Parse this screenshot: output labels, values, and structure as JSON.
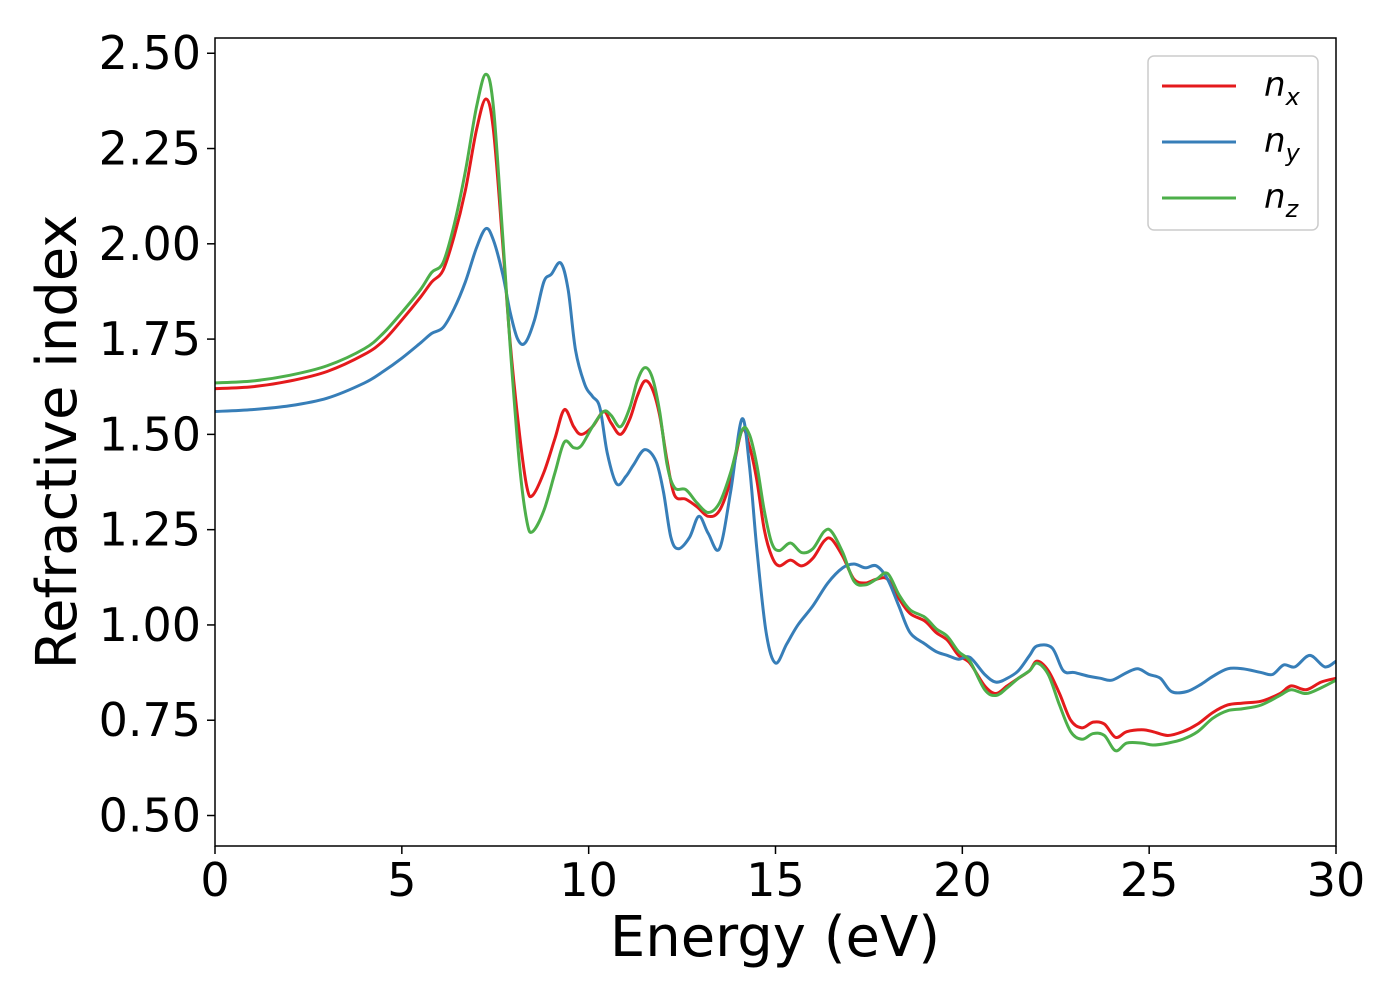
{
  "chart_data": {
    "type": "line",
    "title": "",
    "xlabel": "Energy (eV)",
    "ylabel": "Refractive index",
    "xlim": [
      0,
      30
    ],
    "ylim": [
      0.42,
      2.54
    ],
    "xticks": [
      "0",
      "5",
      "10",
      "15",
      "20",
      "25",
      "30"
    ],
    "yticks": [
      "0.50",
      "0.75",
      "1.00",
      "1.25",
      "1.50",
      "1.75",
      "2.00",
      "2.25",
      "2.50"
    ],
    "grid": false,
    "legend_position": "top-right",
    "series": [
      {
        "name": "n",
        "subscript": "x",
        "color": "#e41a1c",
        "points": [
          [
            0,
            1.62
          ],
          [
            1,
            1.625
          ],
          [
            2,
            1.64
          ],
          [
            3,
            1.665
          ],
          [
            4,
            1.71
          ],
          [
            4.5,
            1.745
          ],
          [
            5,
            1.8
          ],
          [
            5.5,
            1.86
          ],
          [
            5.8,
            1.9
          ],
          [
            6.1,
            1.93
          ],
          [
            6.4,
            2.02
          ],
          [
            6.7,
            2.14
          ],
          [
            7,
            2.3
          ],
          [
            7.25,
            2.38
          ],
          [
            7.45,
            2.3
          ],
          [
            7.7,
            2.0
          ],
          [
            7.9,
            1.74
          ],
          [
            8.15,
            1.5
          ],
          [
            8.35,
            1.36
          ],
          [
            8.5,
            1.34
          ],
          [
            8.8,
            1.4
          ],
          [
            9.1,
            1.49
          ],
          [
            9.35,
            1.565
          ],
          [
            9.6,
            1.52
          ],
          [
            9.8,
            1.5
          ],
          [
            10.1,
            1.52
          ],
          [
            10.4,
            1.56
          ],
          [
            10.6,
            1.53
          ],
          [
            10.85,
            1.5
          ],
          [
            11.1,
            1.54
          ],
          [
            11.3,
            1.6
          ],
          [
            11.5,
            1.64
          ],
          [
            11.7,
            1.62
          ],
          [
            11.9,
            1.55
          ],
          [
            12.1,
            1.43
          ],
          [
            12.3,
            1.34
          ],
          [
            12.6,
            1.33
          ],
          [
            12.9,
            1.31
          ],
          [
            13.2,
            1.285
          ],
          [
            13.5,
            1.3
          ],
          [
            13.8,
            1.38
          ],
          [
            14.1,
            1.51
          ],
          [
            14.3,
            1.47
          ],
          [
            14.5,
            1.38
          ],
          [
            14.7,
            1.25
          ],
          [
            14.9,
            1.18
          ],
          [
            15.1,
            1.155
          ],
          [
            15.4,
            1.17
          ],
          [
            15.7,
            1.155
          ],
          [
            16.0,
            1.175
          ],
          [
            16.3,
            1.22
          ],
          [
            16.5,
            1.225
          ],
          [
            16.8,
            1.18
          ],
          [
            17.1,
            1.12
          ],
          [
            17.4,
            1.11
          ],
          [
            17.7,
            1.12
          ],
          [
            18.0,
            1.12
          ],
          [
            18.3,
            1.07
          ],
          [
            18.6,
            1.03
          ],
          [
            19.0,
            1.01
          ],
          [
            19.3,
            0.98
          ],
          [
            19.6,
            0.96
          ],
          [
            19.9,
            0.92
          ],
          [
            20.2,
            0.9
          ],
          [
            20.6,
            0.84
          ],
          [
            20.9,
            0.82
          ],
          [
            21.2,
            0.84
          ],
          [
            21.5,
            0.86
          ],
          [
            21.8,
            0.88
          ],
          [
            22.0,
            0.905
          ],
          [
            22.3,
            0.88
          ],
          [
            22.6,
            0.82
          ],
          [
            22.9,
            0.75
          ],
          [
            23.2,
            0.73
          ],
          [
            23.5,
            0.745
          ],
          [
            23.8,
            0.74
          ],
          [
            24.1,
            0.705
          ],
          [
            24.4,
            0.72
          ],
          [
            24.8,
            0.725
          ],
          [
            25.1,
            0.72
          ],
          [
            25.5,
            0.71
          ],
          [
            25.9,
            0.72
          ],
          [
            26.3,
            0.74
          ],
          [
            26.7,
            0.77
          ],
          [
            27.1,
            0.79
          ],
          [
            27.5,
            0.795
          ],
          [
            28.0,
            0.8
          ],
          [
            28.5,
            0.82
          ],
          [
            28.8,
            0.84
          ],
          [
            29.2,
            0.83
          ],
          [
            29.6,
            0.85
          ],
          [
            30,
            0.86
          ]
        ]
      },
      {
        "name": "n",
        "subscript": "y",
        "color": "#377eb8",
        "points": [
          [
            0,
            1.56
          ],
          [
            1,
            1.565
          ],
          [
            2,
            1.575
          ],
          [
            3,
            1.595
          ],
          [
            4,
            1.635
          ],
          [
            4.5,
            1.665
          ],
          [
            5,
            1.7
          ],
          [
            5.5,
            1.74
          ],
          [
            5.8,
            1.765
          ],
          [
            6.1,
            1.78
          ],
          [
            6.4,
            1.83
          ],
          [
            6.7,
            1.9
          ],
          [
            7,
            1.99
          ],
          [
            7.25,
            2.04
          ],
          [
            7.45,
            2.01
          ],
          [
            7.7,
            1.92
          ],
          [
            7.9,
            1.82
          ],
          [
            8.1,
            1.75
          ],
          [
            8.3,
            1.74
          ],
          [
            8.55,
            1.8
          ],
          [
            8.8,
            1.9
          ],
          [
            9.0,
            1.92
          ],
          [
            9.25,
            1.95
          ],
          [
            9.45,
            1.88
          ],
          [
            9.65,
            1.72
          ],
          [
            9.9,
            1.63
          ],
          [
            10.1,
            1.6
          ],
          [
            10.3,
            1.57
          ],
          [
            10.5,
            1.45
          ],
          [
            10.75,
            1.37
          ],
          [
            11.0,
            1.39
          ],
          [
            11.2,
            1.42
          ],
          [
            11.5,
            1.46
          ],
          [
            11.8,
            1.43
          ],
          [
            12.0,
            1.35
          ],
          [
            12.2,
            1.23
          ],
          [
            12.4,
            1.2
          ],
          [
            12.7,
            1.23
          ],
          [
            12.95,
            1.285
          ],
          [
            13.2,
            1.24
          ],
          [
            13.5,
            1.2
          ],
          [
            13.8,
            1.35
          ],
          [
            14.1,
            1.54
          ],
          [
            14.3,
            1.42
          ],
          [
            14.5,
            1.2
          ],
          [
            14.75,
            0.98
          ],
          [
            15.0,
            0.9
          ],
          [
            15.3,
            0.95
          ],
          [
            15.6,
            1.0
          ],
          [
            16.0,
            1.05
          ],
          [
            16.4,
            1.11
          ],
          [
            16.8,
            1.15
          ],
          [
            17.1,
            1.16
          ],
          [
            17.4,
            1.15
          ],
          [
            17.7,
            1.155
          ],
          [
            18.0,
            1.12
          ],
          [
            18.3,
            1.05
          ],
          [
            18.6,
            0.98
          ],
          [
            19.0,
            0.95
          ],
          [
            19.3,
            0.93
          ],
          [
            19.6,
            0.92
          ],
          [
            19.9,
            0.91
          ],
          [
            20.2,
            0.915
          ],
          [
            20.6,
            0.87
          ],
          [
            20.9,
            0.85
          ],
          [
            21.2,
            0.86
          ],
          [
            21.5,
            0.88
          ],
          [
            21.8,
            0.92
          ],
          [
            22.0,
            0.945
          ],
          [
            22.4,
            0.94
          ],
          [
            22.7,
            0.88
          ],
          [
            23.0,
            0.875
          ],
          [
            23.4,
            0.865
          ],
          [
            23.7,
            0.86
          ],
          [
            24.0,
            0.855
          ],
          [
            24.4,
            0.875
          ],
          [
            24.7,
            0.885
          ],
          [
            25.0,
            0.87
          ],
          [
            25.3,
            0.86
          ],
          [
            25.6,
            0.825
          ],
          [
            26.0,
            0.825
          ],
          [
            26.4,
            0.845
          ],
          [
            26.7,
            0.865
          ],
          [
            27.1,
            0.885
          ],
          [
            27.5,
            0.885
          ],
          [
            28.0,
            0.875
          ],
          [
            28.3,
            0.87
          ],
          [
            28.6,
            0.895
          ],
          [
            28.9,
            0.89
          ],
          [
            29.3,
            0.92
          ],
          [
            29.7,
            0.89
          ],
          [
            30,
            0.905
          ]
        ]
      },
      {
        "name": "n",
        "subscript": "z",
        "color": "#4daf4a",
        "points": [
          [
            0,
            1.635
          ],
          [
            1,
            1.64
          ],
          [
            2,
            1.655
          ],
          [
            3,
            1.68
          ],
          [
            4,
            1.725
          ],
          [
            4.5,
            1.765
          ],
          [
            5,
            1.82
          ],
          [
            5.5,
            1.88
          ],
          [
            5.8,
            1.925
          ],
          [
            6.1,
            1.95
          ],
          [
            6.4,
            2.05
          ],
          [
            6.7,
            2.19
          ],
          [
            7,
            2.36
          ],
          [
            7.25,
            2.445
          ],
          [
            7.45,
            2.36
          ],
          [
            7.7,
            2.02
          ],
          [
            7.9,
            1.73
          ],
          [
            8.15,
            1.42
          ],
          [
            8.35,
            1.27
          ],
          [
            8.5,
            1.245
          ],
          [
            8.8,
            1.3
          ],
          [
            9.1,
            1.4
          ],
          [
            9.35,
            1.48
          ],
          [
            9.6,
            1.465
          ],
          [
            9.8,
            1.47
          ],
          [
            10.1,
            1.52
          ],
          [
            10.4,
            1.56
          ],
          [
            10.6,
            1.55
          ],
          [
            10.85,
            1.52
          ],
          [
            11.1,
            1.57
          ],
          [
            11.3,
            1.64
          ],
          [
            11.5,
            1.675
          ],
          [
            11.7,
            1.65
          ],
          [
            11.9,
            1.56
          ],
          [
            12.1,
            1.42
          ],
          [
            12.3,
            1.36
          ],
          [
            12.6,
            1.355
          ],
          [
            12.9,
            1.32
          ],
          [
            13.2,
            1.295
          ],
          [
            13.5,
            1.32
          ],
          [
            13.8,
            1.4
          ],
          [
            14.1,
            1.51
          ],
          [
            14.3,
            1.5
          ],
          [
            14.5,
            1.42
          ],
          [
            14.7,
            1.3
          ],
          [
            14.9,
            1.215
          ],
          [
            15.1,
            1.195
          ],
          [
            15.4,
            1.215
          ],
          [
            15.7,
            1.19
          ],
          [
            16.0,
            1.2
          ],
          [
            16.3,
            1.245
          ],
          [
            16.5,
            1.245
          ],
          [
            16.8,
            1.19
          ],
          [
            17.1,
            1.115
          ],
          [
            17.4,
            1.105
          ],
          [
            17.7,
            1.12
          ],
          [
            18.0,
            1.135
          ],
          [
            18.3,
            1.08
          ],
          [
            18.6,
            1.04
          ],
          [
            19.0,
            1.02
          ],
          [
            19.3,
            0.99
          ],
          [
            19.6,
            0.97
          ],
          [
            19.9,
            0.93
          ],
          [
            20.2,
            0.905
          ],
          [
            20.6,
            0.83
          ],
          [
            20.9,
            0.815
          ],
          [
            21.2,
            0.835
          ],
          [
            21.5,
            0.86
          ],
          [
            21.8,
            0.88
          ],
          [
            22.0,
            0.9
          ],
          [
            22.3,
            0.87
          ],
          [
            22.6,
            0.79
          ],
          [
            22.9,
            0.72
          ],
          [
            23.2,
            0.7
          ],
          [
            23.5,
            0.715
          ],
          [
            23.8,
            0.71
          ],
          [
            24.1,
            0.67
          ],
          [
            24.4,
            0.69
          ],
          [
            24.8,
            0.69
          ],
          [
            25.1,
            0.685
          ],
          [
            25.5,
            0.69
          ],
          [
            25.9,
            0.7
          ],
          [
            26.3,
            0.72
          ],
          [
            26.7,
            0.755
          ],
          [
            27.1,
            0.775
          ],
          [
            27.5,
            0.78
          ],
          [
            28.0,
            0.79
          ],
          [
            28.5,
            0.815
          ],
          [
            28.8,
            0.83
          ],
          [
            29.2,
            0.82
          ],
          [
            29.6,
            0.835
          ],
          [
            30,
            0.855
          ]
        ]
      }
    ]
  }
}
